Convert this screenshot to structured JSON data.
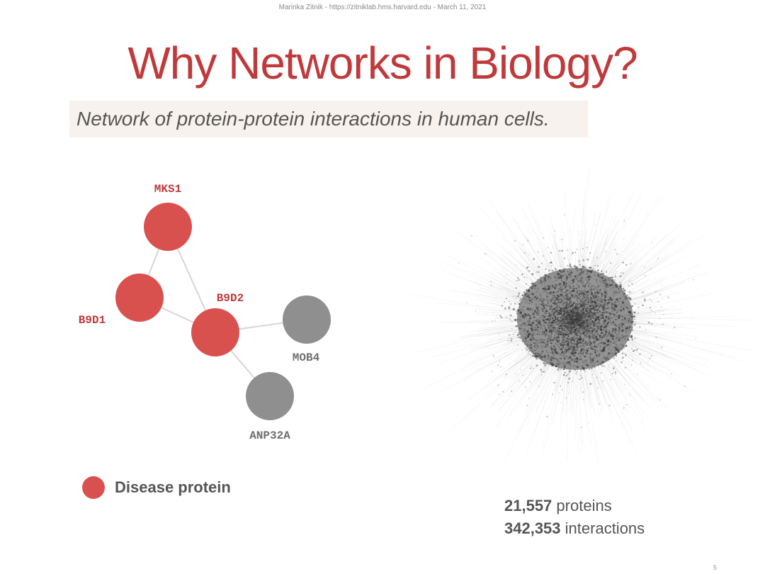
{
  "header": {
    "credit": "Marinka Zitnik - https://zitniklab.hms.harvard.edu - March 11, 2021"
  },
  "title": "Why Networks in Biology?",
  "subtitle": "Network of protein-protein interactions in human cells.",
  "colors": {
    "title": "#c0393b",
    "disease": "#d9514f",
    "other": "#8f8f8f",
    "edge": "#d6d6d6"
  },
  "network": {
    "nodes": [
      {
        "id": "MKS1",
        "label": "MKS1",
        "type": "disease"
      },
      {
        "id": "B9D1",
        "label": "B9D1",
        "type": "disease"
      },
      {
        "id": "B9D2",
        "label": "B9D2",
        "type": "disease"
      },
      {
        "id": "MOB4",
        "label": "MOB4",
        "type": "other"
      },
      {
        "id": "ANP32A",
        "label": "ANP32A",
        "type": "other"
      }
    ],
    "edges": [
      [
        "MKS1",
        "B9D1"
      ],
      [
        "MKS1",
        "B9D2"
      ],
      [
        "B9D1",
        "B9D2"
      ],
      [
        "B9D2",
        "MOB4"
      ],
      [
        "B9D2",
        "ANP32A"
      ]
    ]
  },
  "legend": {
    "label": "Disease protein"
  },
  "stats": {
    "proteins_count": "21,557",
    "proteins_label": "proteins",
    "interactions_count": "342,353",
    "interactions_label": "interactions"
  },
  "page_number": "5"
}
